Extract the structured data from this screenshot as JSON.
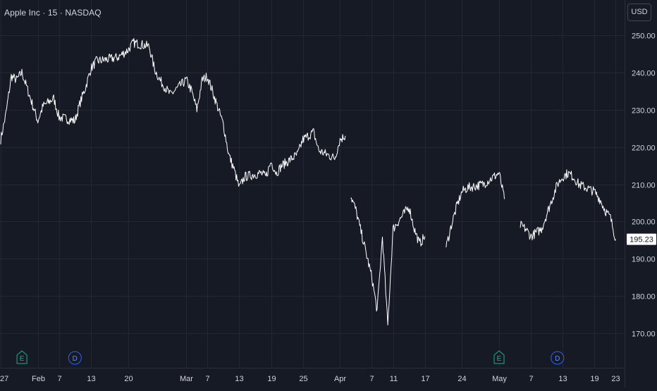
{
  "header": {
    "title": "Apple Inc · 15 · NASDAQ"
  },
  "price_scale": {
    "currency_label": "USD"
  },
  "colors": {
    "background": "#161a25",
    "grid": "#232733",
    "line": "#ffffff",
    "text": "#d1d4dc",
    "earnings_marker": "#22ab94",
    "dividend_marker": "#2962ff",
    "last_price_box": "#ffffff",
    "last_price_text": "#131722"
  },
  "chart_data": {
    "type": "line",
    "title": "Apple Inc · 15 · NASDAQ",
    "xlabel": "",
    "ylabel": "",
    "ylim": [
      163.3,
      258.4
    ],
    "xlim": [
      "2025-01-27",
      "2025-05-24"
    ],
    "y_ticks": [
      "250.00",
      "240.00",
      "230.00",
      "220.00",
      "210.00",
      "200.00",
      "190.00",
      "180.00",
      "170.00"
    ],
    "y_tick_values": [
      250,
      240,
      230,
      220,
      210,
      200,
      190,
      180,
      170
    ],
    "x_ticks": [
      {
        "label": "27",
        "date": "2025-01-27"
      },
      {
        "label": "Feb",
        "date": "2025-02-03"
      },
      {
        "label": "7",
        "date": "2025-02-07"
      },
      {
        "label": "13",
        "date": "2025-02-13"
      },
      {
        "label": "20",
        "date": "2025-02-20"
      },
      {
        "label": "Mar",
        "date": "2025-03-03"
      },
      {
        "label": "7",
        "date": "2025-03-07"
      },
      {
        "label": "13",
        "date": "2025-03-13"
      },
      {
        "label": "19",
        "date": "2025-03-19"
      },
      {
        "label": "25",
        "date": "2025-03-25"
      },
      {
        "label": "Apr",
        "date": "2025-04-01"
      },
      {
        "label": "7",
        "date": "2025-04-07"
      },
      {
        "label": "11",
        "date": "2025-04-11"
      },
      {
        "label": "17",
        "date": "2025-04-17"
      },
      {
        "label": "24",
        "date": "2025-04-24"
      },
      {
        "label": "May",
        "date": "2025-05-01"
      },
      {
        "label": "7",
        "date": "2025-05-07"
      },
      {
        "label": "13",
        "date": "2025-05-13"
      },
      {
        "label": "19",
        "date": "2025-05-19"
      },
      {
        "label": "23",
        "date": "2025-05-23"
      }
    ],
    "grid": true,
    "last_price": 195.23,
    "series": [
      {
        "segments": [
          {
            "x": [
              "2025-01-27",
              "2025-01-28",
              "2025-01-29",
              "2025-01-30",
              "2025-01-31",
              "2025-02-03",
              "2025-02-04",
              "2025-02-05",
              "2025-02-06",
              "2025-02-07",
              "2025-02-10",
              "2025-02-11",
              "2025-02-12",
              "2025-02-13",
              "2025-02-14",
              "2025-02-18",
              "2025-02-19",
              "2025-02-20",
              "2025-02-21",
              "2025-02-24",
              "2025-02-25",
              "2025-02-26",
              "2025-02-27",
              "2025-02-28",
              "2025-03-03",
              "2025-03-04",
              "2025-03-05",
              "2025-03-06",
              "2025-03-07",
              "2025-03-10",
              "2025-03-11",
              "2025-03-12",
              "2025-03-13",
              "2025-03-14",
              "2025-03-17",
              "2025-03-18",
              "2025-03-19",
              "2025-03-20",
              "2025-03-21",
              "2025-03-24",
              "2025-03-25",
              "2025-03-26",
              "2025-03-27",
              "2025-03-28",
              "2025-03-31",
              "2025-04-01",
              "2025-04-02"
            ],
            "y": [
              222,
              229,
              239,
              238,
              240,
              227,
              231,
              232,
              233,
              228,
              227,
              232,
              236,
              241,
              243,
              244,
              245,
              246,
              248,
              247,
              241,
              238,
              236,
              234,
              238,
              235,
              230,
              238,
              239,
              226,
              218,
              214,
              209,
              212,
              213,
              212,
              216,
              213,
              215,
              218,
              222,
              223,
              224,
              219,
              217,
              222,
              223
            ]
          },
          {
            "x": [
              "2025-04-03",
              "2025-04-04",
              "2025-04-07",
              "2025-04-08",
              "2025-04-09",
              "2025-04-10",
              "2025-04-11",
              "2025-04-14",
              "2025-04-15",
              "2025-04-16",
              "2025-04-17"
            ],
            "y": [
              207,
              203,
              185,
              176,
              196,
              172,
              198,
              204,
              198,
              194,
              196
            ]
          },
          {
            "x": [
              "2025-04-21",
              "2025-04-22",
              "2025-04-23",
              "2025-04-24",
              "2025-04-25",
              "2025-04-28",
              "2025-04-29",
              "2025-04-30",
              "2025-05-01",
              "2025-05-02"
            ],
            "y": [
              193,
              199,
              204,
              208,
              209,
              210,
              211,
              212,
              213,
              206
            ]
          },
          {
            "x": [
              "2025-05-05",
              "2025-05-06",
              "2025-05-07",
              "2025-05-08",
              "2025-05-09",
              "2025-05-12",
              "2025-05-13",
              "2025-05-14",
              "2025-05-15",
              "2025-05-16",
              "2025-05-19",
              "2025-05-20",
              "2025-05-21",
              "2025-05-22",
              "2025-05-23"
            ],
            "y": [
              199,
              198,
              196,
              197,
              198,
              210,
              212,
              213,
              212,
              210,
              208,
              206,
              203,
              201,
              195.23
            ]
          }
        ]
      }
    ],
    "event_markers": [
      {
        "label": "E",
        "date": "2025-01-31"
      },
      {
        "label": "D",
        "date": "2025-02-10"
      },
      {
        "label": "E",
        "date": "2025-05-01"
      },
      {
        "label": "D",
        "date": "2025-05-12"
      }
    ]
  }
}
